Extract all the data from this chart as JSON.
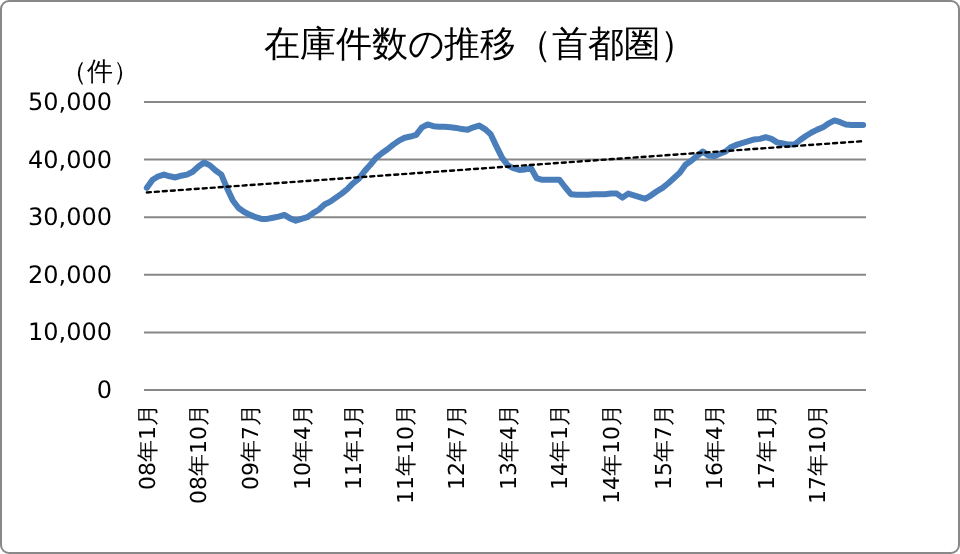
{
  "chart_data": {
    "type": "line",
    "title": "在庫件数の推移（首都圏）",
    "ylabel": "（件）",
    "grid": "y",
    "x": [
      "2008-01",
      "2008-02",
      "2008-03",
      "2008-04",
      "2008-05",
      "2008-06",
      "2008-07",
      "2008-08",
      "2008-09",
      "2008-10",
      "2008-11",
      "2008-12",
      "2009-01",
      "2009-02",
      "2009-03",
      "2009-04",
      "2009-05",
      "2009-06",
      "2009-07",
      "2009-08",
      "2009-09",
      "2009-10",
      "2009-11",
      "2009-12",
      "2010-01",
      "2010-02",
      "2010-03",
      "2010-04",
      "2010-05",
      "2010-06",
      "2010-07",
      "2010-08",
      "2010-09",
      "2010-10",
      "2010-11",
      "2010-12",
      "2011-01",
      "2011-02",
      "2011-03",
      "2011-04",
      "2011-05",
      "2011-06",
      "2011-07",
      "2011-08",
      "2011-09",
      "2011-10",
      "2011-11",
      "2011-12",
      "2012-01",
      "2012-02",
      "2012-03",
      "2012-04",
      "2012-05",
      "2012-06",
      "2012-07",
      "2012-08",
      "2012-09",
      "2012-10",
      "2012-11",
      "2012-12",
      "2013-01",
      "2013-02",
      "2013-03",
      "2013-04",
      "2013-05",
      "2013-06",
      "2013-07",
      "2013-08",
      "2013-09",
      "2013-10",
      "2013-11",
      "2013-12",
      "2014-01",
      "2014-02",
      "2014-03",
      "2014-04",
      "2014-05",
      "2014-06",
      "2014-07",
      "2014-08",
      "2014-09",
      "2014-10",
      "2014-11",
      "2014-12",
      "2015-01",
      "2015-02",
      "2015-03",
      "2015-04",
      "2015-05",
      "2015-06",
      "2015-07",
      "2015-08",
      "2015-09",
      "2015-10",
      "2015-11",
      "2015-12",
      "2016-01",
      "2016-02",
      "2016-03",
      "2016-04",
      "2016-05",
      "2016-06",
      "2016-07",
      "2016-08",
      "2016-09",
      "2016-10",
      "2016-11",
      "2016-12",
      "2017-01",
      "2017-02",
      "2017-03",
      "2017-04",
      "2017-05",
      "2017-06",
      "2017-07",
      "2017-08",
      "2017-09",
      "2017-10",
      "2017-11",
      "2017-12",
      "2018-01",
      "2018-02",
      "2018-03",
      "2018-04",
      "2018-05",
      "2018-06"
    ],
    "xlim": [
      "2007-12-16",
      "2018-06-16"
    ],
    "xticks": [
      {
        "value": "2008-01",
        "label": "08年1月"
      },
      {
        "value": "2008-10",
        "label": "08年10月"
      },
      {
        "value": "2009-07",
        "label": "09年7月"
      },
      {
        "value": "2010-04",
        "label": "10年4月"
      },
      {
        "value": "2011-01",
        "label": "11年1月"
      },
      {
        "value": "2011-10",
        "label": "11年10月"
      },
      {
        "value": "2012-07",
        "label": "12年7月"
      },
      {
        "value": "2013-04",
        "label": "13年4月"
      },
      {
        "value": "2014-01",
        "label": "14年1月"
      },
      {
        "value": "2014-10",
        "label": "14年10月"
      },
      {
        "value": "2015-07",
        "label": "15年7月"
      },
      {
        "value": "2016-04",
        "label": "16年4月"
      },
      {
        "value": "2017-01",
        "label": "17年1月"
      },
      {
        "value": "2017-10",
        "label": "17年10月"
      }
    ],
    "ylim": [
      0,
      50000
    ],
    "yticks": [
      {
        "value": 0,
        "label": "0"
      },
      {
        "value": 10000,
        "label": "10,000"
      },
      {
        "value": 20000,
        "label": "20,000"
      },
      {
        "value": 30000,
        "label": "30,000"
      },
      {
        "value": 40000,
        "label": "40,000"
      },
      {
        "value": 50000,
        "label": "50,000"
      }
    ],
    "series": [
      {
        "type": "line",
        "color": "#4a7ebb",
        "values": [
          35100,
          36500,
          37100,
          37400,
          37100,
          36900,
          37200,
          37400,
          37900,
          38800,
          39500,
          39000,
          38100,
          37400,
          35000,
          32900,
          31600,
          30900,
          30400,
          30000,
          29700,
          29700,
          29900,
          30100,
          30400,
          29800,
          29400,
          29700,
          30000,
          30700,
          31300,
          32200,
          32700,
          33400,
          34100,
          34900,
          35900,
          36700,
          38000,
          39100,
          40300,
          41100,
          41800,
          42600,
          43300,
          43800,
          44000,
          44300,
          45600,
          46100,
          45800,
          45700,
          45700,
          45600,
          45500,
          45300,
          45200,
          45600,
          45900,
          45300,
          44400,
          42300,
          40300,
          39000,
          38500,
          38200,
          38300,
          38600,
          36800,
          36500,
          36500,
          36500,
          36500,
          35200,
          34000,
          33900,
          33900,
          33900,
          34000,
          34000,
          34000,
          34100,
          34100,
          33400,
          34100,
          33800,
          33500,
          33200,
          33800,
          34500,
          35100,
          35900,
          36800,
          37700,
          39100,
          39800,
          40600,
          41400,
          40700,
          40600,
          41000,
          41400,
          42200,
          42600,
          42900,
          43200,
          43500,
          43600,
          43900,
          43600,
          43000,
          42800,
          42600,
          42600,
          43400,
          44100,
          44700,
          45200,
          45600,
          46300,
          46800,
          46500,
          46100,
          46000,
          46000,
          46000
        ]
      },
      {
        "type": "line",
        "color": "#000000",
        "line_style": "dotted",
        "x": [
          "2008-01",
          "2018-06"
        ],
        "values": [
          34300,
          43200
        ]
      }
    ]
  }
}
